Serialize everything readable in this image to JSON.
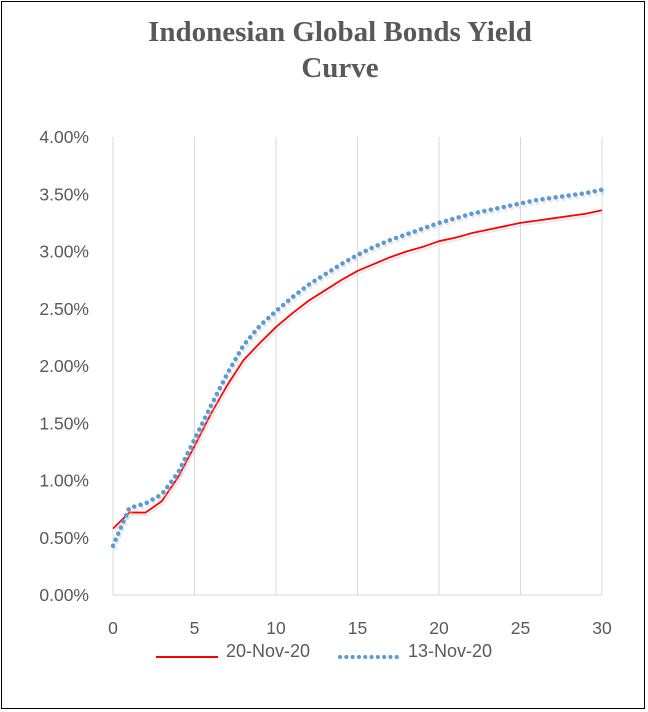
{
  "chart_data": {
    "type": "line",
    "title_lines": [
      "Indonesian Global Bonds Yield",
      "Curve"
    ],
    "xlabel": "",
    "ylabel": "",
    "xlim": [
      0,
      30
    ],
    "ylim": [
      0,
      0.04
    ],
    "x_ticks": [
      "0",
      "5",
      "10",
      "15",
      "20",
      "25",
      "30"
    ],
    "y_ticks": [
      "0.00%",
      "0.50%",
      "1.00%",
      "1.50%",
      "2.00%",
      "2.50%",
      "3.00%",
      "3.50%",
      "4.00%"
    ],
    "grid": "vertical",
    "legend_position": "bottom",
    "series": [
      {
        "name": "20-Nov-20",
        "color": "#ff0000",
        "style": "solid",
        "x": [
          0,
          1,
          2,
          3,
          4,
          5,
          6,
          7,
          8,
          9,
          10,
          11,
          12,
          13,
          14,
          15,
          16,
          17,
          18,
          19,
          20,
          21,
          22,
          23,
          24,
          25,
          26,
          27,
          28,
          29,
          30
        ],
        "y": [
          0.0058,
          0.0072,
          0.0072,
          0.0082,
          0.0103,
          0.013,
          0.0158,
          0.0183,
          0.0205,
          0.022,
          0.0234,
          0.0246,
          0.0257,
          0.0266,
          0.0275,
          0.0283,
          0.0289,
          0.0295,
          0.03,
          0.0304,
          0.0309,
          0.0312,
          0.0316,
          0.0319,
          0.0322,
          0.0325,
          0.0327,
          0.0329,
          0.0331,
          0.0333,
          0.0336
        ]
      },
      {
        "name": "13-Nov-20",
        "color": "#5b9bd5",
        "style": "dotted",
        "x": [
          0,
          1,
          2,
          3,
          4,
          5,
          6,
          7,
          8,
          9,
          10,
          11,
          12,
          13,
          14,
          15,
          16,
          17,
          18,
          19,
          20,
          21,
          22,
          23,
          24,
          25,
          26,
          27,
          28,
          29,
          30
        ],
        "y": [
          0.0043,
          0.0076,
          0.008,
          0.0088,
          0.0107,
          0.0136,
          0.0165,
          0.0193,
          0.0218,
          0.0235,
          0.0248,
          0.026,
          0.0271,
          0.028,
          0.0289,
          0.0297,
          0.0304,
          0.031,
          0.0315,
          0.032,
          0.0325,
          0.0329,
          0.0333,
          0.0336,
          0.0339,
          0.0342,
          0.0345,
          0.0347,
          0.0349,
          0.0351,
          0.0354
        ]
      }
    ]
  }
}
